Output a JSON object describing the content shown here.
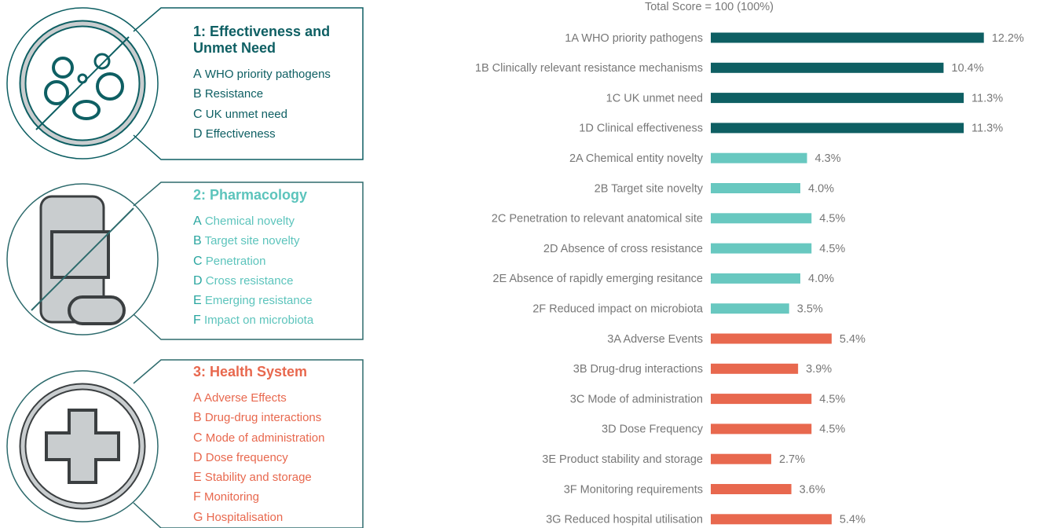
{
  "panels": [
    {
      "title": "1: Effectiveness and Unmet Need",
      "color": "#0e5f63",
      "text_color": "#0e5f63",
      "items": [
        {
          "letter": "A",
          "text": "WHO priority pathogens"
        },
        {
          "letter": "B",
          "text": "Resistance"
        },
        {
          "letter": "C",
          "text": "UK unmet need"
        },
        {
          "letter": "D",
          "text": "Effectiveness"
        }
      ]
    },
    {
      "title": "2: Pharmacology",
      "color": "#2aa6a0",
      "text_color": "#5cc4bc",
      "items": [
        {
          "letter": "A",
          "text": "Chemical novelty"
        },
        {
          "letter": "B",
          "text": "Target site novelty"
        },
        {
          "letter": "C",
          "text": "Penetration"
        },
        {
          "letter": "D",
          "text": "Cross resistance"
        },
        {
          "letter": "E",
          "text": "Emerging resistance"
        },
        {
          "letter": "F",
          "text": "Impact on microbiota"
        }
      ]
    },
    {
      "title": "3: Health System",
      "color": "#e8684e",
      "text_color": "#e8684e",
      "items": [
        {
          "letter": "A",
          "text": "Adverse Effects"
        },
        {
          "letter": "B",
          "text": "Drug-drug interactions"
        },
        {
          "letter": "C",
          "text": "Mode of administration"
        },
        {
          "letter": "D",
          "text": "Dose frequency"
        },
        {
          "letter": "E",
          "text": "Stability and storage"
        },
        {
          "letter": "F",
          "text": "Monitoring"
        },
        {
          "letter": "G",
          "text": "Hospitalisation"
        }
      ]
    }
  ],
  "chart_data": {
    "type": "bar",
    "orientation": "horizontal",
    "title": "Total Score = 100 (100%)",
    "categories": [
      "1A WHO priority pathogens",
      "1B Clinically relevant resistance mechanisms",
      "1C UK unmet need",
      "1D Clinical effectiveness",
      "2A Chemical entity novelty",
      "2B Target site novelty",
      "2C Penetration to relevant anatomical site",
      "2D Absence of cross resistance",
      "2E Absence of rapidly emerging resitance",
      "2F Reduced impact on microbiota",
      "3A Adverse Events",
      "3B Drug-drug interactions",
      "3C Mode of administration",
      "3D Dose Frequency",
      "3E Product stability and storage",
      "3F Monitoring requirements",
      "3G Reduced hospital utilisation"
    ],
    "values": [
      12.2,
      10.4,
      11.3,
      11.3,
      4.3,
      4.0,
      4.5,
      4.5,
      4.0,
      3.5,
      5.4,
      3.9,
      4.5,
      4.5,
      2.7,
      3.6,
      5.4
    ],
    "value_labels": [
      "12.2%",
      "10.4%",
      "11.3%",
      "11.3%",
      "4.3%",
      "4.0%",
      "4.5%",
      "4.5%",
      "4.0%",
      "3.5%",
      "5.4%",
      "3.9%",
      "4.5%",
      "4.5%",
      "2.7%",
      "3.6%",
      "5.4%"
    ],
    "colors": [
      "#0e5f63",
      "#0e5f63",
      "#0e5f63",
      "#0e5f63",
      "#68c8c0",
      "#68c8c0",
      "#68c8c0",
      "#68c8c0",
      "#68c8c0",
      "#68c8c0",
      "#e8684e",
      "#e8684e",
      "#e8684e",
      "#e8684e",
      "#e8684e",
      "#e8684e",
      "#e8684e"
    ]
  }
}
